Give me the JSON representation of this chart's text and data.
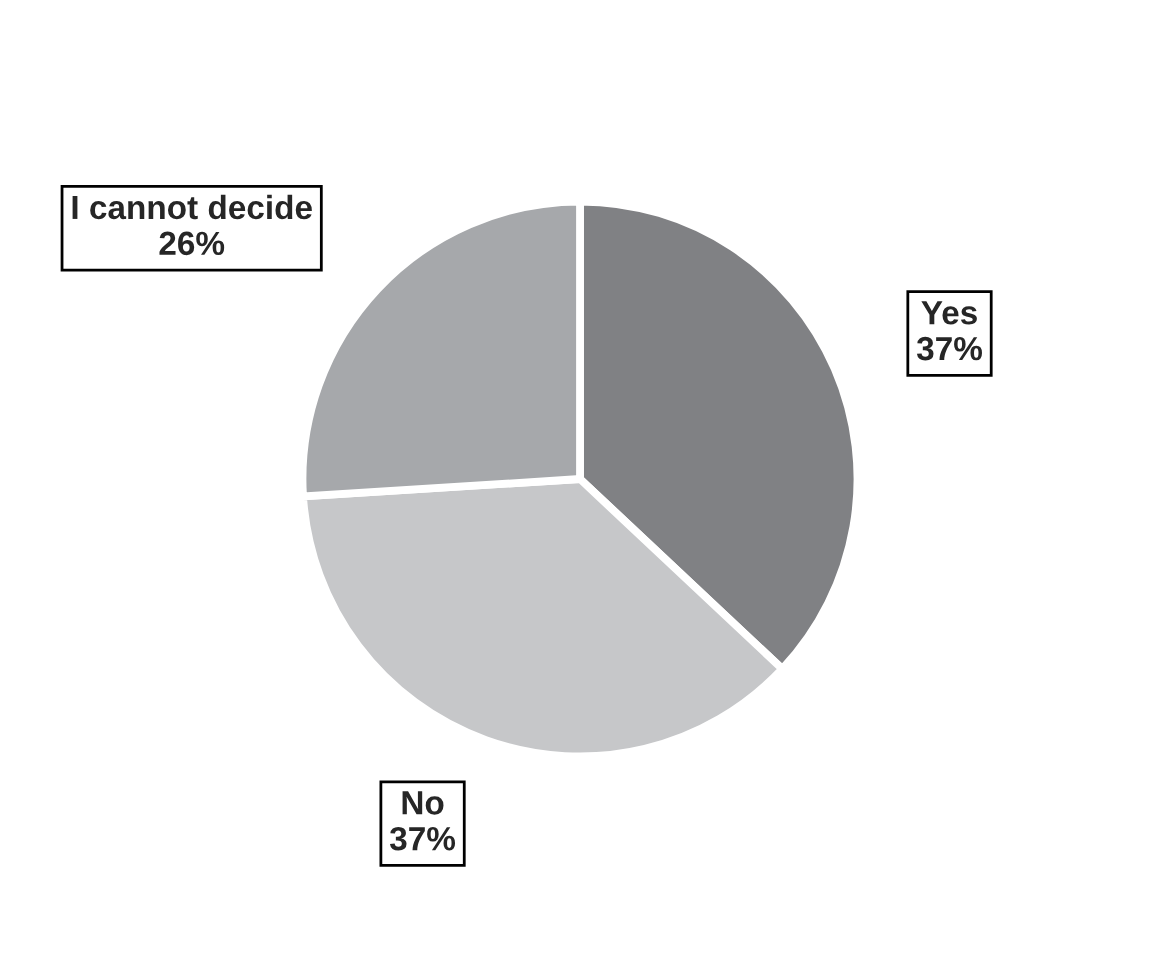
{
  "chart_data": {
    "type": "pie",
    "categories": [
      "Yes",
      "No",
      "I cannot decide"
    ],
    "values": [
      37,
      37,
      26
    ],
    "value_labels": [
      "37%",
      "37%",
      "26%"
    ],
    "colors": [
      "#808184",
      "#c6c7c9",
      "#a6a8ab"
    ],
    "legend": false
  }
}
